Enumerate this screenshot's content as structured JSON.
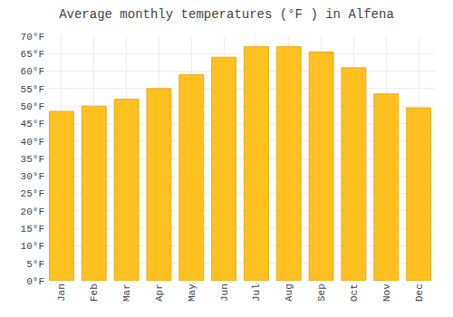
{
  "chart_data": {
    "type": "bar",
    "title": "Average monthly temperatures (°F ) in Alfena",
    "categories": [
      "Jan",
      "Feb",
      "Mar",
      "Apr",
      "May",
      "Jun",
      "Jul",
      "Aug",
      "Sep",
      "Oct",
      "Nov",
      "Dec"
    ],
    "values": [
      48.5,
      50.0,
      52.0,
      55.0,
      59.0,
      64.0,
      67.0,
      67.0,
      65.5,
      61.0,
      53.5,
      49.5
    ],
    "color": "#FFC020",
    "ylim": [
      0,
      70
    ],
    "yticks": [
      {
        "value": 0,
        "label": "0°F"
      },
      {
        "value": 5,
        "label": "5°F"
      },
      {
        "value": 10,
        "label": "10°F"
      },
      {
        "value": 15,
        "label": "15°F"
      },
      {
        "value": 20,
        "label": "20°F"
      },
      {
        "value": 25,
        "label": "25°F"
      },
      {
        "value": 30,
        "label": "30°F"
      },
      {
        "value": 35,
        "label": "35°F"
      },
      {
        "value": 40,
        "label": "40°F"
      },
      {
        "value": 45,
        "label": "45°F"
      },
      {
        "value": 50,
        "label": "50°F"
      },
      {
        "value": 55,
        "label": "55°F"
      },
      {
        "value": 60,
        "label": "60°F"
      },
      {
        "value": 65,
        "label": "65°F"
      },
      {
        "value": 70,
        "label": "70°F"
      }
    ],
    "grid": true
  }
}
